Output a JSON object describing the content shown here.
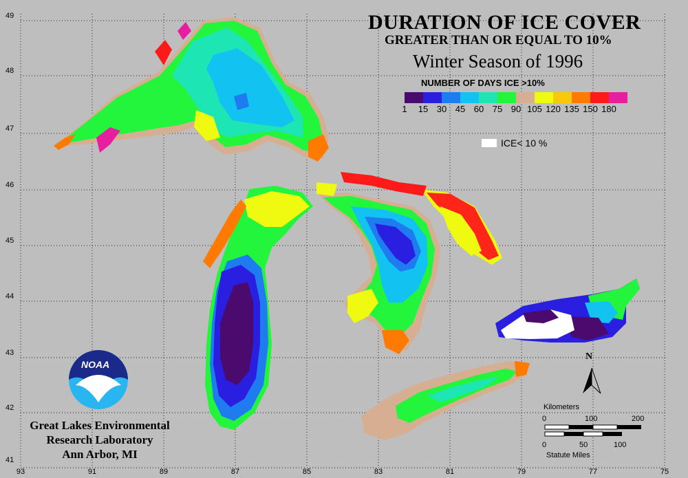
{
  "title": "DURATION OF ICE COVER",
  "subtitle": "GREATER THAN OR EQUAL TO 10%",
  "season": "Winter Season of 1996",
  "legend": {
    "title": "NUMBER OF DAYS ICE >10%",
    "colors": [
      "#4b0a6e",
      "#2a1ee0",
      "#1e7cf0",
      "#12c3f2",
      "#1de6b4",
      "#22f53c",
      "#d6ae91",
      "#eefa10",
      "#f8c80a",
      "#ff7a00",
      "#ff1a1a",
      "#e81ea0"
    ],
    "ticks": [
      "1",
      "15",
      "30",
      "45",
      "60",
      "75",
      "90",
      "105",
      "120",
      "135",
      "150",
      "180"
    ],
    "ice_label": "ICE< 10 %"
  },
  "axes": {
    "latitudes": [
      "49",
      "48",
      "47",
      "46",
      "45",
      "44",
      "43",
      "42",
      "41"
    ],
    "longitudes": [
      "93",
      "91",
      "89",
      "87",
      "85",
      "83",
      "81",
      "79",
      "77",
      "75"
    ]
  },
  "lab": {
    "line1": "Great Lakes Environmental",
    "line2": "Research Laboratory",
    "line3": "Ann Arbor, MI",
    "logo_text": "NOAA"
  },
  "north_label": "N",
  "scale": {
    "km_label": "Kilometers",
    "km_ticks": [
      "0",
      "100",
      "200"
    ],
    "mi_ticks": [
      "0",
      "50",
      "100"
    ],
    "mi_label": "Statute Miles"
  }
}
